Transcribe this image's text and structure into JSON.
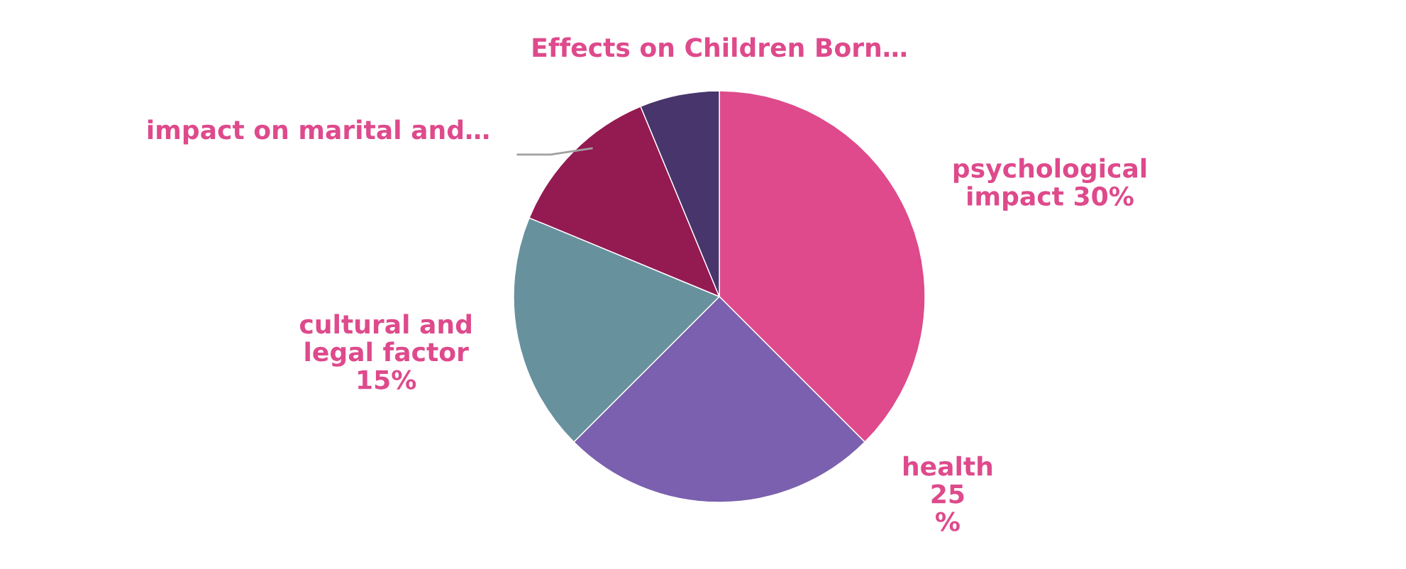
{
  "chart_data": {
    "type": "pie",
    "title": "Effects on Children Born…",
    "categories": [
      "psychological impact 30%",
      "health 25 %",
      "cultural and legal factor 15%",
      "impact on marital and…",
      null
    ],
    "values": [
      37.5,
      25,
      18.75,
      12.5,
      6.25
    ],
    "colors": [
      "#de4a8c",
      "#7a60ae",
      "#68919e",
      "#941a52",
      "#48356c"
    ],
    "legend": false
  }
}
